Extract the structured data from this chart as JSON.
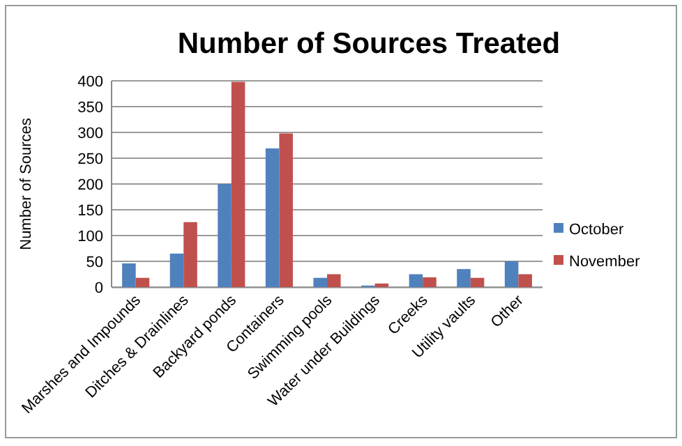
{
  "chart_data": {
    "type": "bar",
    "title": "Number of Sources Treated",
    "ylabel": "Number of Sources",
    "categories": [
      "Marshes and Impounds",
      "Ditches & Drainlines",
      "Backyard ponds",
      "Containers",
      "Swimming pools",
      "Water under Buildings",
      "Creeks",
      "Utility vaults",
      "Other"
    ],
    "series": [
      {
        "name": "October",
        "color": "#4f81bd",
        "values": [
          46,
          65,
          200,
          269,
          18,
          3,
          25,
          35,
          50
        ]
      },
      {
        "name": "November",
        "color": "#c0504d",
        "values": [
          18,
          126,
          398,
          298,
          25,
          7,
          19,
          18,
          25
        ]
      }
    ],
    "ylim": [
      0,
      400
    ],
    "yticks": [
      0,
      50,
      100,
      150,
      200,
      250,
      300,
      350,
      400
    ],
    "grid": "y",
    "legend": "right"
  }
}
